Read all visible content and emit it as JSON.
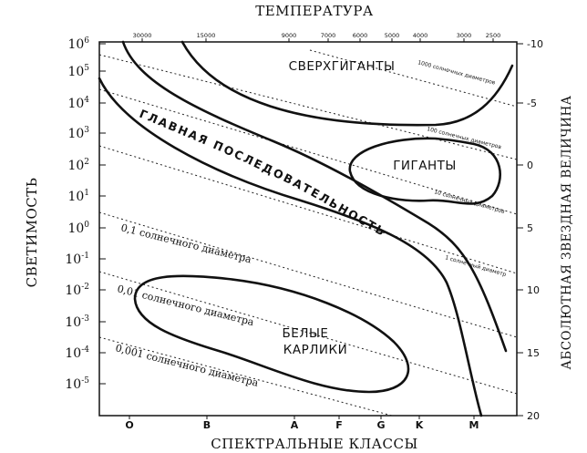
{
  "titles": {
    "top": "ТЕМПЕРАТУРА",
    "bottom": "СПЕКТРАЛЬНЫЕ КЛАССЫ",
    "left": "СВЕТИМОСТЬ",
    "right": "АБСОЛЮТНАЯ ЗВЕЗДНАЯ ВЕЛИЧИНА"
  },
  "y_ticks": [
    {
      "base": "10",
      "exp": "6"
    },
    {
      "base": "10",
      "exp": "5"
    },
    {
      "base": "10",
      "exp": "4"
    },
    {
      "base": "10",
      "exp": "3"
    },
    {
      "base": "10",
      "exp": "2"
    },
    {
      "base": "10",
      "exp": "1"
    },
    {
      "base": "10",
      "exp": "0"
    },
    {
      "base": "10",
      "exp": "-1"
    },
    {
      "base": "10",
      "exp": "-2"
    },
    {
      "base": "10",
      "exp": "-3"
    },
    {
      "base": "10",
      "exp": "-4"
    },
    {
      "base": "10",
      "exp": "-5"
    }
  ],
  "temperature_ticks": [
    "30000",
    "15000",
    "9000",
    "7000",
    "6000",
    "5000",
    "4000",
    "3000",
    "2500"
  ],
  "magnitude_ticks": [
    "-10",
    "-5",
    "0",
    "5",
    "10",
    "15",
    "20"
  ],
  "spectral_classes": [
    "O",
    "B",
    "A",
    "F",
    "G",
    "K",
    "M"
  ],
  "regions": {
    "supergiants": "СВЕРХГИГАНТЫ",
    "giants": "ГИГАНТЫ",
    "white_dwarfs_line1": "БЕЛЫЕ",
    "white_dwarfs_line2": "КАРЛИКИ",
    "main_sequence": "ГЛАВНАЯ ПОСЛЕДОВАТЕЛЬНОСТЬ"
  },
  "diameter_lines": [
    {
      "label": "1000 солнечных диаметров"
    },
    {
      "label": "100 солнечных диаметров"
    },
    {
      "label": "10 солнечных диаметров"
    },
    {
      "label": "1 солнечный диаметр"
    },
    {
      "label": "0,1 солнечного диаметра"
    },
    {
      "label": "0,01 солнечного диаметра"
    },
    {
      "label": "0,001 солнечного диаметра"
    }
  ]
}
